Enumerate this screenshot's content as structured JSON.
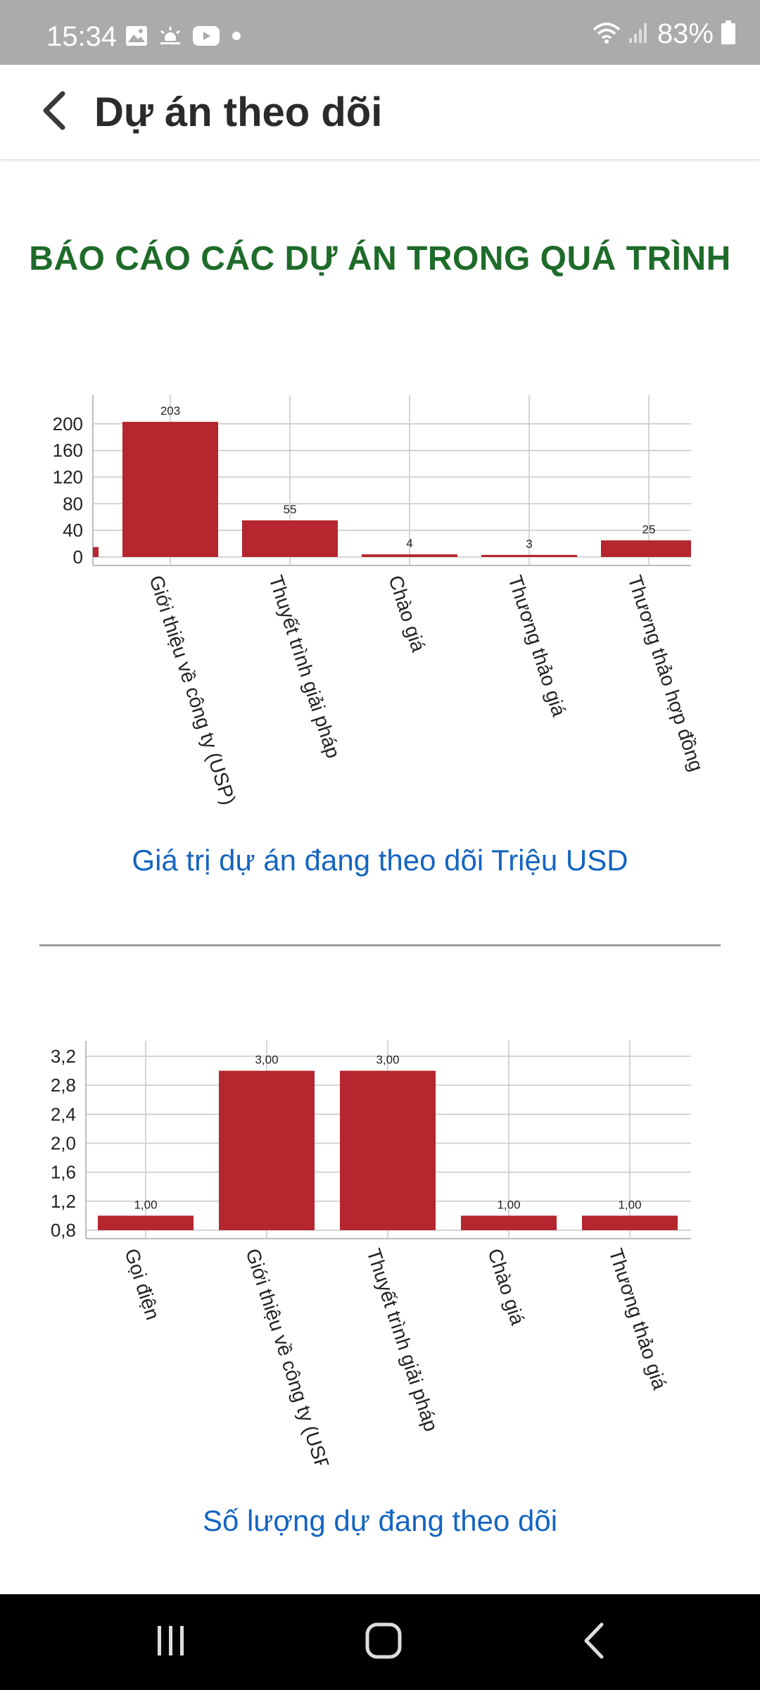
{
  "status_bar": {
    "time": "15:34",
    "battery": "83%",
    "icons": [
      "gallery-icon",
      "weather-icon",
      "youtube-icon",
      "dot-icon",
      "wifi-icon",
      "signal-icon",
      "battery-icon"
    ]
  },
  "app_bar": {
    "title": "Dự án theo dõi",
    "back_icon": "chevron-left-icon"
  },
  "report": {
    "title": "BÁO CÁO CÁC DỰ ÁN TRONG QUÁ TRÌNH"
  },
  "colors": {
    "bar": "#b5262e",
    "title_green": "#1e6b2a",
    "caption_blue": "#1565c0",
    "status_bar_bg": "#ababab"
  },
  "chart_data": [
    {
      "type": "bar",
      "categories": [
        "",
        "Giới thiệu về công ty (USP)",
        "Thuyết trình giải pháp",
        "Chào giá",
        "Thương thảo giá",
        "Thương thảo hợp đồng"
      ],
      "values": [
        15,
        203,
        55,
        4,
        3,
        25
      ],
      "data_labels": [
        "",
        "203",
        "55",
        "4",
        "3",
        "25"
      ],
      "y_ticks": [
        "0",
        "40",
        "80",
        "120",
        "160",
        "200"
      ],
      "ylim": [
        0,
        220
      ],
      "title": "",
      "caption": "Giá trị dự án đang theo dõi Triệu USD",
      "grid": true
    },
    {
      "type": "bar",
      "categories": [
        "Gọi điện",
        "Giới thiệu về công ty (USP)",
        "Thuyết trình giải pháp",
        "Chào giá",
        "Thương thảo giá"
      ],
      "values": [
        1.0,
        3.0,
        3.0,
        1.0,
        1.0
      ],
      "data_labels": [
        "1,00",
        "3,00",
        "3,00",
        "1,00",
        "1,00"
      ],
      "y_ticks": [
        "0,8",
        "1,2",
        "1,6",
        "2,0",
        "2,4",
        "2,8",
        "3,2"
      ],
      "ylim": [
        0.8,
        3.2
      ],
      "title": "",
      "caption": "Số lượng dự đang theo dõi",
      "grid": true
    }
  ],
  "nav_bar": {
    "buttons": [
      "recent-apps-icon",
      "home-icon",
      "back-icon"
    ]
  }
}
